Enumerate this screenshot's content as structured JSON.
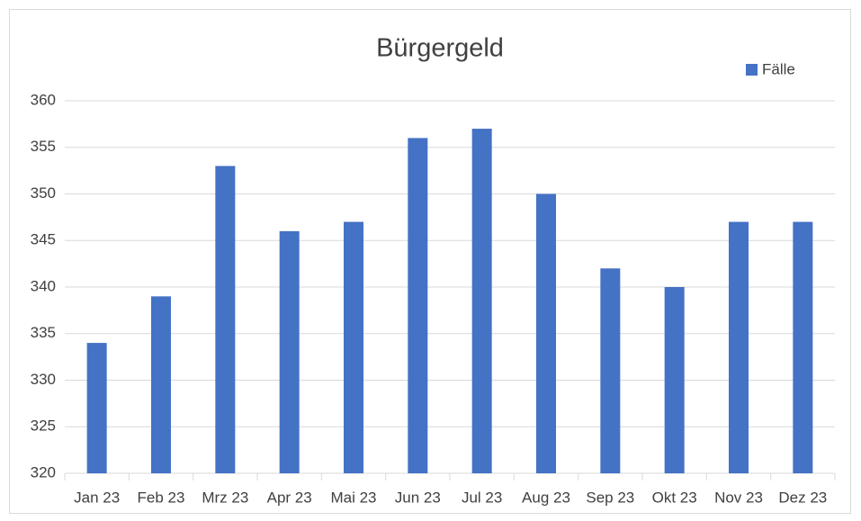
{
  "chart_data": {
    "type": "bar",
    "title": "Bürgergeld",
    "categories": [
      "Jan 23",
      "Feb 23",
      "Mrz 23",
      "Apr 23",
      "Mai 23",
      "Jun 23",
      "Jul 23",
      "Aug 23",
      "Sep 23",
      "Okt 23",
      "Nov 23",
      "Dez 23"
    ],
    "series": [
      {
        "name": "Fälle",
        "color": "#4472c4",
        "values": [
          334,
          339,
          353,
          346,
          347,
          356,
          357,
          350,
          342,
          340,
          347,
          347
        ]
      }
    ],
    "ylim": [
      320,
      360
    ],
    "yticks": [
      320,
      325,
      330,
      335,
      340,
      345,
      350,
      355,
      360
    ],
    "grid": true,
    "legend": "top-right"
  }
}
